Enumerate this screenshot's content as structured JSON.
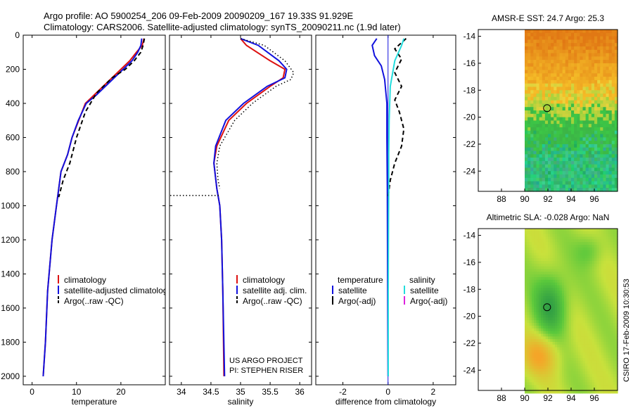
{
  "figure": {
    "title_line1": "Argo profile: AO 5900254_206 09-Feb-2009 20090209_167 19.33S 91.929E",
    "title_line2": "Climatology: CARS2006. Satellite-adjusted climatology: synTS_20090211.nc (1.9d later)",
    "credit": "CSIRO 17-Feb-2009 10:30:53",
    "project_line1": "US ARGO PROJECT",
    "project_line2": "PI: STEPHEN RISER"
  },
  "colors": {
    "climatology": "#dd1111",
    "satellite": "#1111dd",
    "argo": "#000000",
    "salinity_satellite": "#22dddd",
    "salinity_argo": "#dd22dd"
  },
  "chart_data": [
    {
      "type": "line",
      "id": "temperature",
      "xlabel": "temperature",
      "ylabel": "",
      "xlim": [
        -2,
        30
      ],
      "ylim": [
        2050,
        0
      ],
      "y_inverted": true,
      "xticks": [
        0,
        10,
        20
      ],
      "yticks": [
        0,
        200,
        400,
        600,
        800,
        1000,
        1200,
        1400,
        1600,
        1800,
        2000
      ],
      "legend": [
        "climatology",
        "satellite-adjusted climatology",
        "Argo(..raw -QC)"
      ],
      "series": [
        {
          "name": "climatology",
          "color_key": "climatology",
          "style": "solid",
          "x": [
            25.2,
            24.8,
            23.5,
            22,
            18,
            14,
            12,
            10.5,
            9,
            8,
            6.5,
            5.5,
            4.5,
            3.5,
            3,
            2.5
          ],
          "y": [
            20,
            60,
            100,
            150,
            250,
            350,
            400,
            500,
            600,
            700,
            800,
            1000,
            1200,
            1500,
            1800,
            2000
          ]
        },
        {
          "name": "satellite-adjusted climatology",
          "color_key": "satellite",
          "style": "solid",
          "x": [
            24.7,
            24.5,
            23.8,
            22.5,
            18.5,
            14.5,
            12.2,
            10.4,
            9,
            8,
            6.5,
            5.5,
            4.5,
            3.5,
            3,
            2.5
          ],
          "y": [
            20,
            60,
            100,
            150,
            250,
            350,
            400,
            500,
            600,
            700,
            800,
            1000,
            1200,
            1500,
            1800,
            2000
          ]
        },
        {
          "name": "Argo(..raw -QC)",
          "color_key": "argo",
          "style": "dashed",
          "x": [
            25.3,
            25,
            24.5,
            23,
            21,
            18,
            14.5,
            12,
            10,
            8.5,
            7,
            6
          ],
          "y": [
            20,
            60,
            100,
            150,
            200,
            250,
            340,
            450,
            600,
            750,
            850,
            950
          ]
        }
      ]
    },
    {
      "type": "line",
      "id": "salinity",
      "xlabel": "salinity",
      "ylabel": "",
      "xlim": [
        33.8,
        36.2
      ],
      "ylim": [
        2050,
        0
      ],
      "y_inverted": true,
      "xticks": [
        34,
        34.5,
        35,
        35.5,
        36
      ],
      "legend": [
        "climatology",
        "satellite adj. clim.",
        "Argo(..raw -QC)"
      ],
      "series": [
        {
          "name": "climatology",
          "color_key": "climatology",
          "style": "solid",
          "x": [
            35,
            35.1,
            35.5,
            35.75,
            35.72,
            35.5,
            35.1,
            34.8,
            34.6,
            34.55,
            34.6,
            34.65,
            34.68,
            34.7,
            34.72
          ],
          "y": [
            20,
            60,
            150,
            200,
            250,
            300,
            400,
            500,
            650,
            750,
            900,
            1000,
            1200,
            1500,
            2000
          ]
        },
        {
          "name": "satellite adj. clim.",
          "color_key": "satellite",
          "style": "solid",
          "x": [
            35,
            35.3,
            35.65,
            35.78,
            35.75,
            35.45,
            35.05,
            34.75,
            34.58,
            34.55,
            34.6,
            34.65,
            34.68,
            34.7,
            34.73
          ],
          "y": [
            20,
            60,
            150,
            200,
            250,
            300,
            400,
            500,
            650,
            750,
            900,
            1000,
            1200,
            1500,
            2000
          ]
        },
        {
          "name": "Argo(..raw -QC)",
          "color_key": "argo",
          "style": "dotted",
          "x": [
            35,
            35.4,
            35.75,
            35.9,
            35.85,
            35.6,
            35.2,
            34.9,
            34.65,
            34.6,
            34.62,
            34.65
          ],
          "y": [
            20,
            60,
            150,
            220,
            260,
            300,
            400,
            500,
            650,
            750,
            850,
            900
          ]
        }
      ]
    },
    {
      "type": "line",
      "id": "difference",
      "xlabel": "difference from climatology",
      "ylabel": "",
      "xlim": [
        -3.2,
        3
      ],
      "ylim": [
        2050,
        0
      ],
      "y_inverted": true,
      "xticks": [
        -2,
        0,
        2
      ],
      "legend_groups": [
        {
          "title": "temperature",
          "items": [
            "satellite",
            "Argo(-adj)"
          ]
        },
        {
          "title": "salinity",
          "items": [
            "satellite",
            "Argo(-adj)"
          ]
        }
      ],
      "series": [
        {
          "name": "temperature satellite",
          "color_key": "satellite",
          "style": "solid",
          "x": [
            -0.5,
            -0.7,
            -0.6,
            -0.3,
            -0.15,
            -0.05,
            -0.05,
            -0.03,
            -0.02,
            0
          ],
          "y": [
            20,
            60,
            120,
            180,
            260,
            400,
            600,
            900,
            1400,
            2000
          ]
        },
        {
          "name": "temperature Argo(-adj)",
          "color_key": "argo",
          "style": "dashed",
          "x": [
            0.8,
            0.3,
            0.6,
            0.3,
            0.6,
            0.3,
            0.5,
            0.7,
            0.6,
            0.3,
            0.1,
            0
          ],
          "y": [
            20,
            80,
            140,
            220,
            300,
            380,
            450,
            550,
            650,
            750,
            850,
            950
          ]
        },
        {
          "name": "salinity satellite",
          "color_key": "salinity_satellite",
          "style": "solid",
          "x": [
            0.7,
            0.6,
            0.3,
            0.1,
            0.05,
            0.03,
            0.03,
            0.02,
            0.01,
            0.01
          ],
          "y": [
            20,
            60,
            150,
            300,
            500,
            700,
            900,
            1100,
            1500,
            2000
          ]
        }
      ]
    },
    {
      "type": "heatmap",
      "id": "sst",
      "title": "AMSR-E SST: 24.7 Argo: 25.3",
      "xlim": [
        86,
        98
      ],
      "ylim": [
        -25.5,
        -13.5
      ],
      "xticks": [
        88,
        90,
        92,
        94,
        96
      ],
      "yticks": [
        -14,
        -16,
        -18,
        -20,
        -22,
        -24
      ],
      "data_xlim": [
        90,
        98
      ],
      "argo_position": {
        "lon": 91.929,
        "lat": -19.33
      }
    },
    {
      "type": "heatmap",
      "id": "sla",
      "title": "Altimetric SLA: -0.028 Argo: NaN",
      "xlim": [
        86,
        98
      ],
      "ylim": [
        -25.5,
        -13.5
      ],
      "xticks": [
        88,
        90,
        92,
        94,
        96
      ],
      "yticks": [
        -14,
        -16,
        -18,
        -20,
        -22,
        -24
      ],
      "data_xlim": [
        90,
        98
      ],
      "argo_position": {
        "lon": 91.929,
        "lat": -19.33
      }
    }
  ]
}
